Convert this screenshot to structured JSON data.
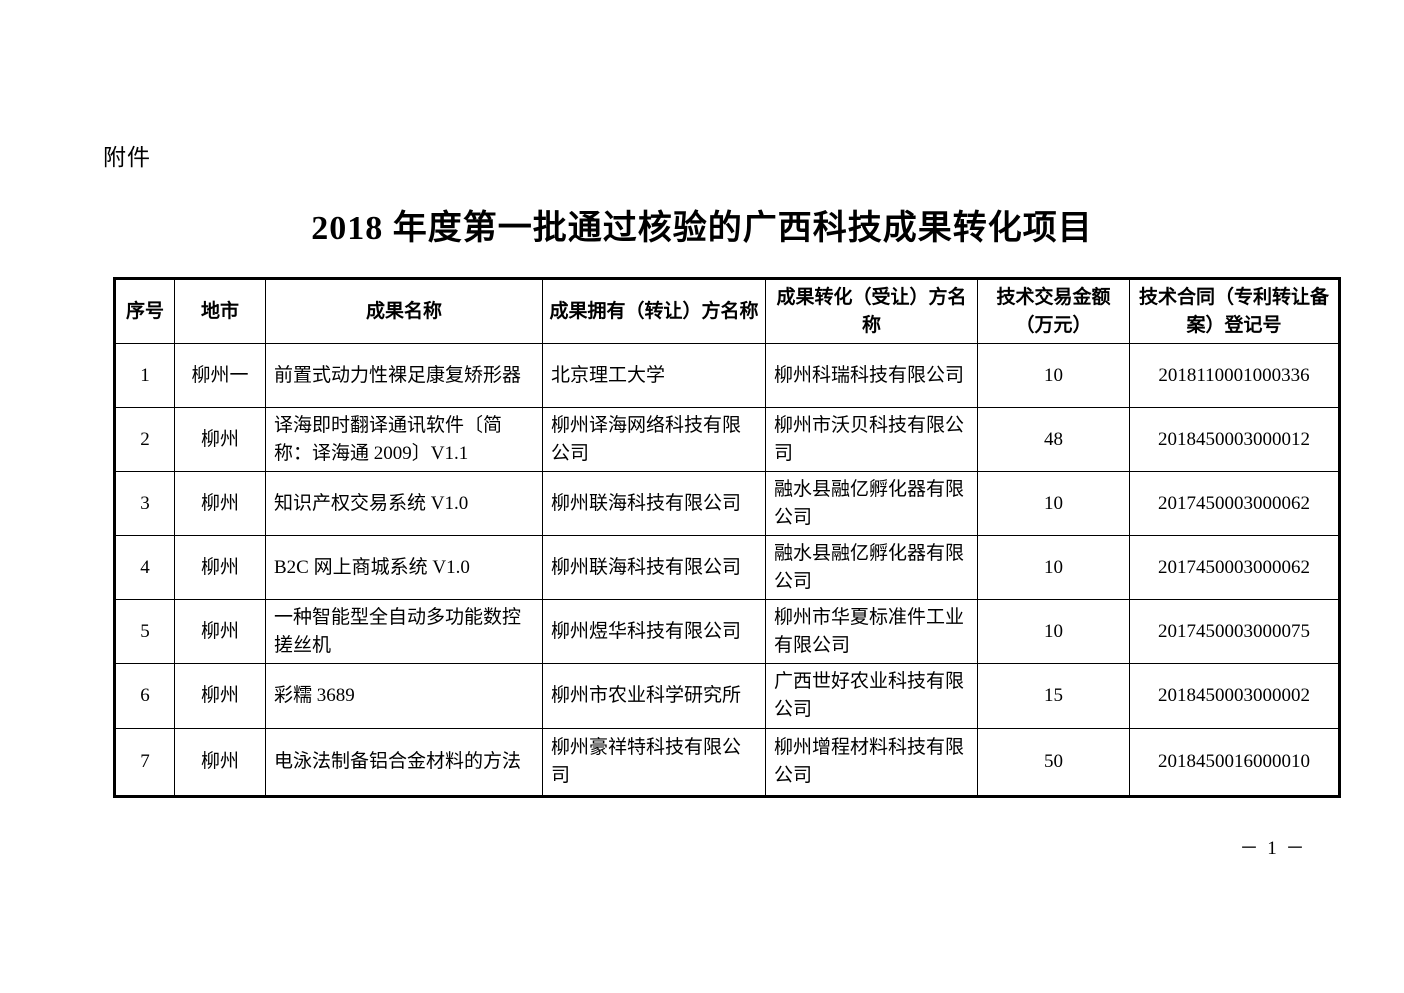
{
  "page": {
    "attachment_label": "附件",
    "title": "2018 年度第一批通过核验的广西科技成果转化项目",
    "page_number": "－ 1 －"
  },
  "table": {
    "headers": [
      "序号",
      "地市",
      "成果名称",
      "成果拥有（转让）方名称",
      "成果转化（受让）方名称",
      "技术交易金额（万元）",
      "技术合同（专利转让备案）登记号"
    ],
    "rows": [
      [
        "1",
        "柳州一",
        "前置式动力性裸足康复矫形器",
        "北京理工大学",
        "柳州科瑞科技有限公司",
        "10",
        "2018110001000336"
      ],
      [
        "2",
        "柳州",
        "译海即时翻译通讯软件〔简称：译海通 2009〕V1.1",
        "柳州译海网络科技有限公司",
        "柳州市沃贝科技有限公司",
        "48",
        "2018450003000012"
      ],
      [
        "3",
        "柳州",
        "知识产权交易系统 V1.0",
        "柳州联海科技有限公司",
        "融水县融亿孵化器有限公司",
        "10",
        "2017450003000062"
      ],
      [
        "4",
        "柳州",
        "B2C 网上商城系统 V1.0",
        "柳州联海科技有限公司",
        "融水县融亿孵化器有限公司",
        "10",
        "2017450003000062"
      ],
      [
        "5",
        "柳州",
        "一种智能型全自动多功能数控搓丝机",
        "柳州煜华科技有限公司",
        "柳州市华夏标准件工业有限公司",
        "10",
        "2017450003000075"
      ],
      [
        "6",
        "柳州",
        "彩糯 3689",
        "柳州市农业科学研究所",
        "广西世好农业科技有限公司",
        "15",
        "2018450003000002"
      ],
      [
        "7",
        "柳州",
        "电泳法制备铝合金材料的方法",
        "柳州豪祥特科技有限公司",
        "柳州增程材料科技有限公司",
        "50",
        "2018450016000010"
      ]
    ]
  }
}
